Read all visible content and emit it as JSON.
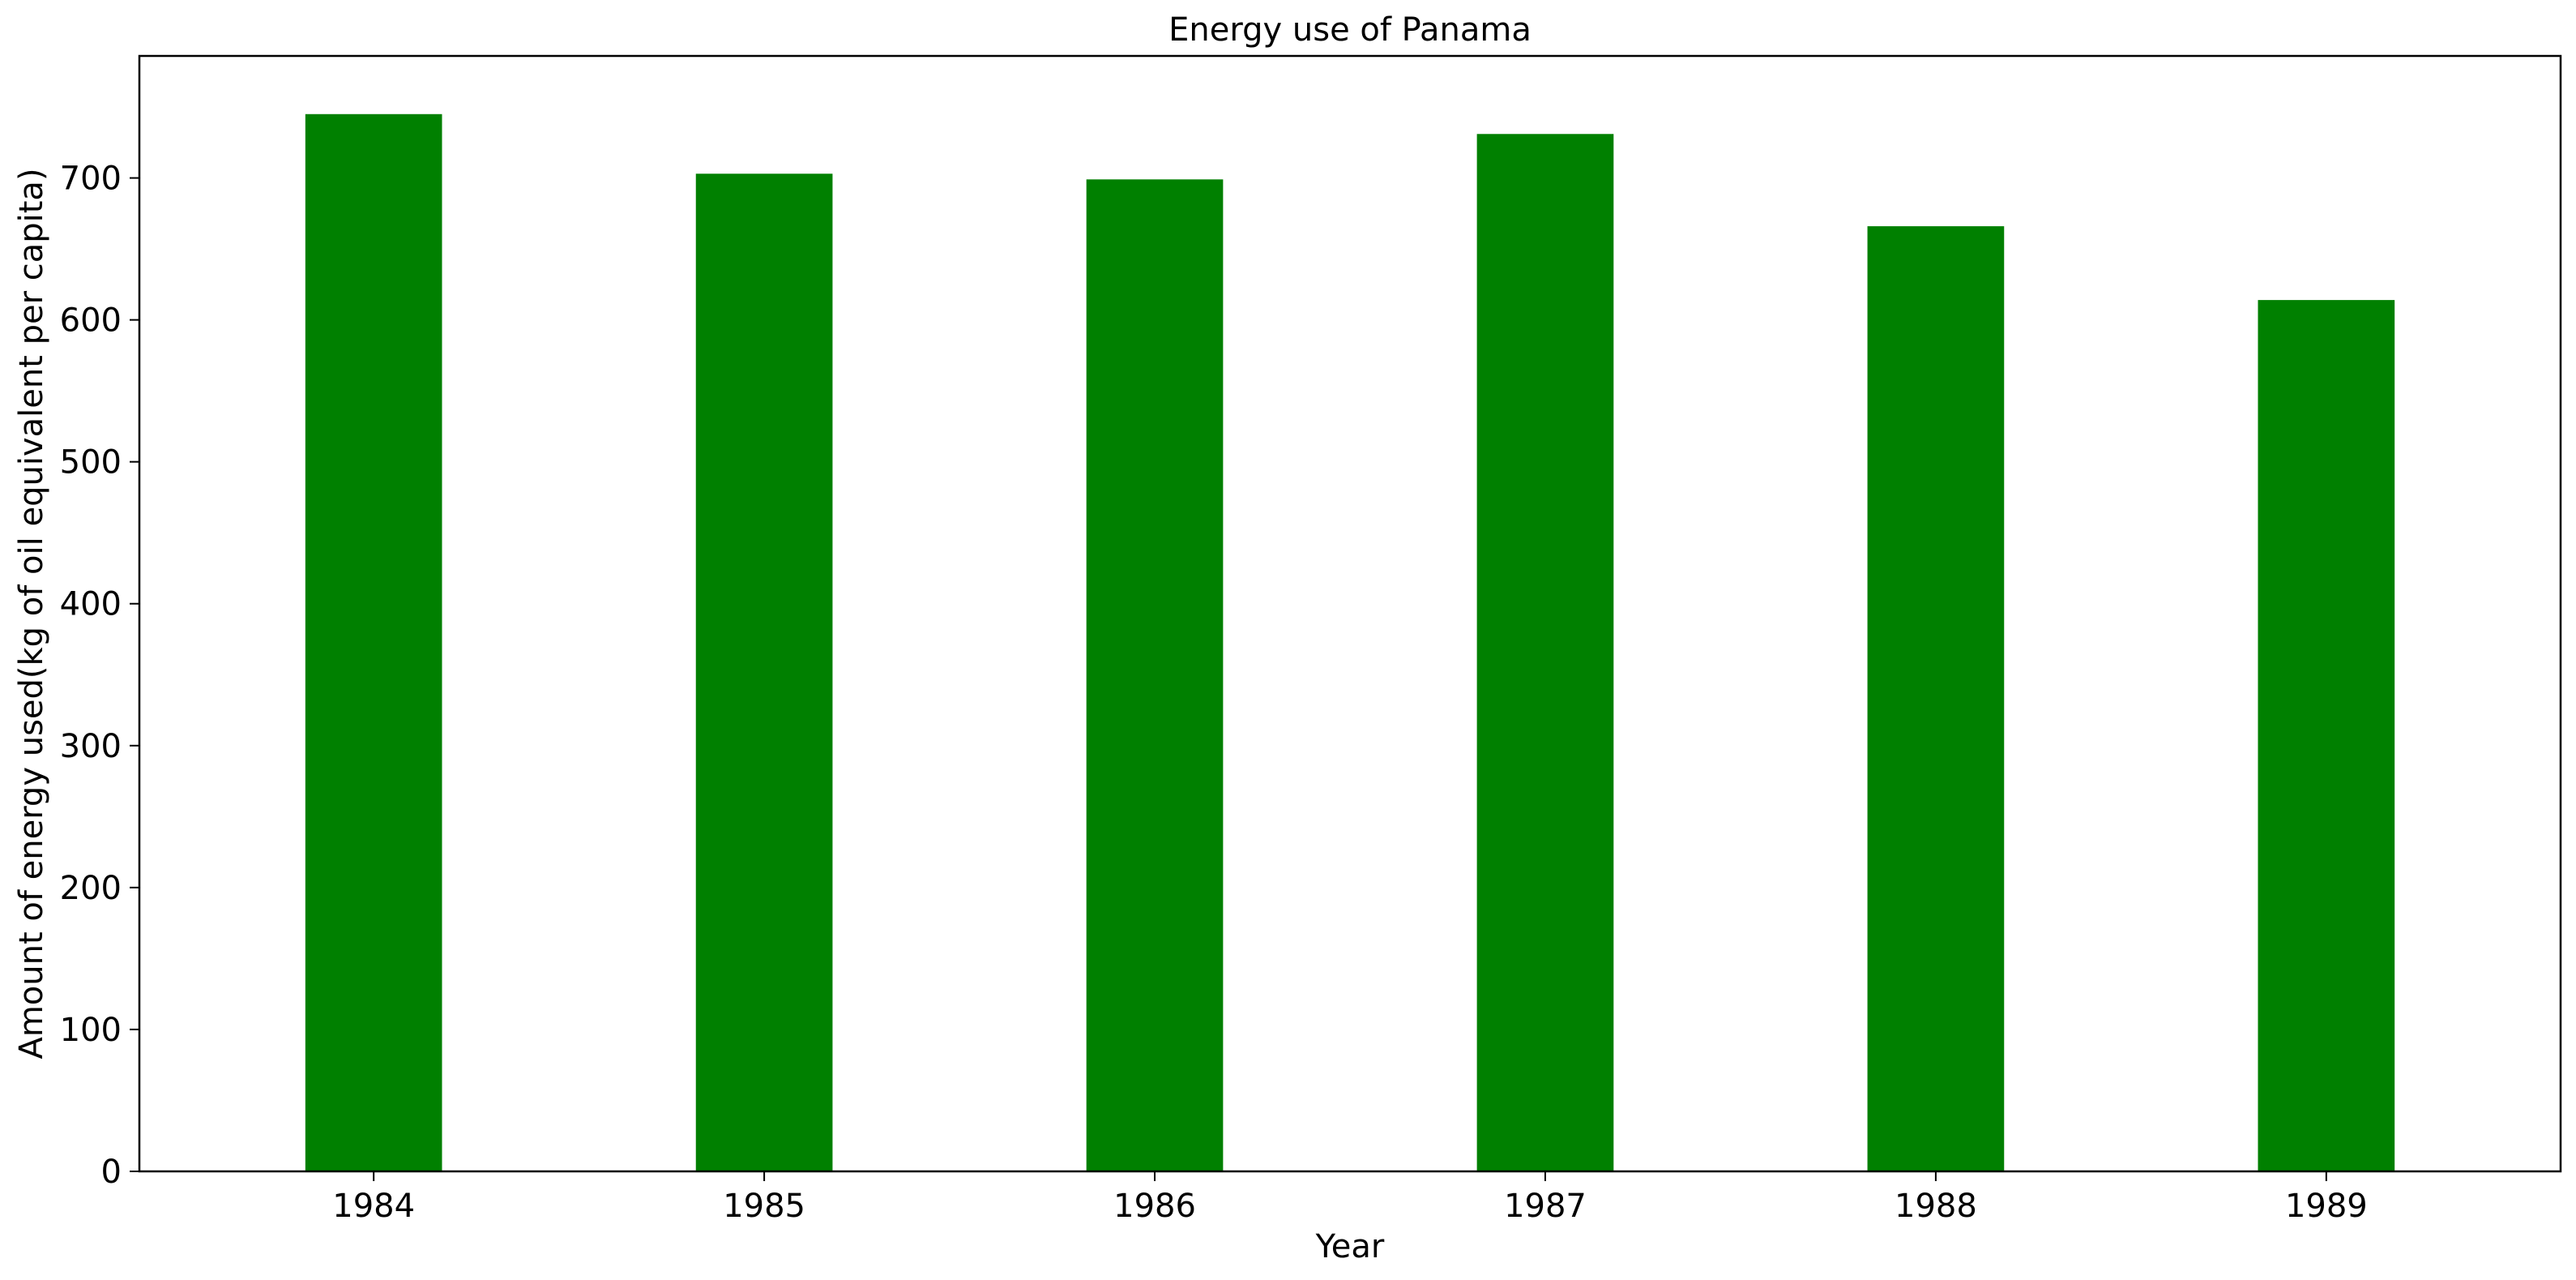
{
  "chart_data": {
    "type": "bar",
    "title": "Energy use of Panama",
    "xlabel": "Year",
    "ylabel": "Amount of energy used(kg of oil equivalent per capita)",
    "categories": [
      "1984",
      "1985",
      "1986",
      "1987",
      "1988",
      "1989"
    ],
    "values": [
      745,
      703,
      699,
      731,
      666,
      614
    ],
    "ylim": [
      0,
      786
    ],
    "yticks": [
      0,
      100,
      200,
      300,
      400,
      500,
      600,
      700
    ],
    "bar_color": "#008000",
    "grid": false,
    "legend": false
  }
}
